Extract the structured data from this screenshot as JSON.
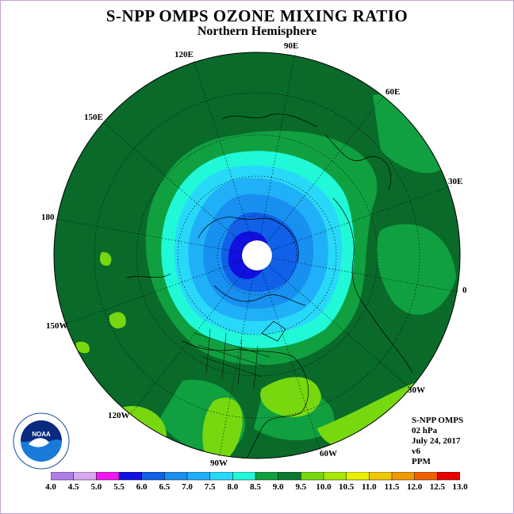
{
  "title": "S-NPP OMPS OZONE MIXING RATIO",
  "subtitle": "Northern Hemisphere",
  "longitude_labels": {
    "lon_90e": "90E",
    "lon_60e": "60E",
    "lon_30e": "30E",
    "lon_0": "0",
    "lon_30w": "30W",
    "lon_60w": "60W",
    "lon_90w": "90W",
    "lon_120w": "120W",
    "lon_150w": "150W",
    "lon_180": "180",
    "lon_150e": "150E",
    "lon_120e": "120E"
  },
  "info": {
    "instrument": "S-NPP OMPS",
    "level": "02 hPa",
    "date": "July 24, 2017",
    "version": "v6",
    "units": "PPM"
  },
  "logo_text": "NOAA",
  "colorbar": {
    "ticks": [
      "4.0",
      "4.5",
      "5.0",
      "5.5",
      "6.0",
      "6.5",
      "7.0",
      "7.5",
      "8.0",
      "8.5",
      "9.0",
      "9.5",
      "10.0",
      "10.5",
      "11.0",
      "11.5",
      "12.0",
      "12.5",
      "13.0"
    ],
    "colors": [
      "#b07ee8",
      "#d8a8f0",
      "#f018f0",
      "#1010e0",
      "#1060e8",
      "#1890f0",
      "#20b0f8",
      "#28d8f8",
      "#20f8d8",
      "#10a040",
      "#0a7a30",
      "#78d810",
      "#a8e800",
      "#e8f000",
      "#f0c800",
      "#f09800",
      "#f06000",
      "#e80000",
      "#a05030"
    ]
  },
  "map": {
    "ocean_background": "#0a6a2a",
    "contour_levels_ppm": [
      "8.5",
      "8.0",
      "7.5",
      "7.0",
      "6.5",
      "6.0",
      "5.5"
    ],
    "polar_no_data": "#ffffff"
  }
}
